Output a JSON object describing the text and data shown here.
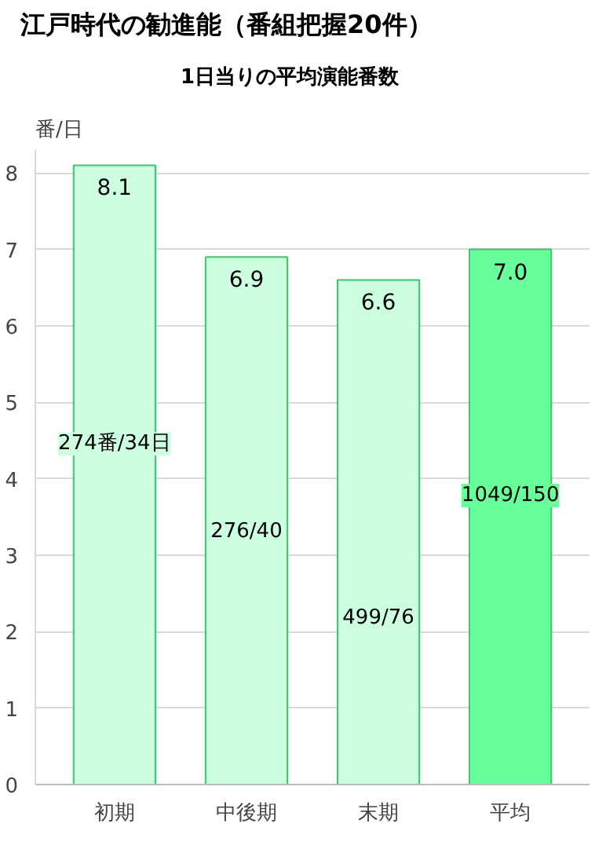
{
  "chart_data": {
    "type": "bar",
    "title": "江戸時代の勧進能（番組把握20件）",
    "subtitle": "1日当りの平均演能番数",
    "ylabel": "番/日",
    "categories": [
      "初期",
      "中後期",
      "末期",
      "平均"
    ],
    "values": [
      8.1,
      6.9,
      6.6,
      7.0
    ],
    "value_labels": [
      "8.1",
      "6.9",
      "6.6",
      "7.0"
    ],
    "colors": [
      "#ccffe0",
      "#ccffe0",
      "#ccffe0",
      "#66ff99"
    ],
    "ylim": [
      0,
      8.3
    ],
    "yticks": [
      0,
      1,
      2,
      3,
      4,
      5,
      6,
      7,
      8
    ],
    "grid": "y",
    "annotations": [
      "274番/34日",
      "276/40",
      "499/76",
      "1049/150"
    ]
  }
}
